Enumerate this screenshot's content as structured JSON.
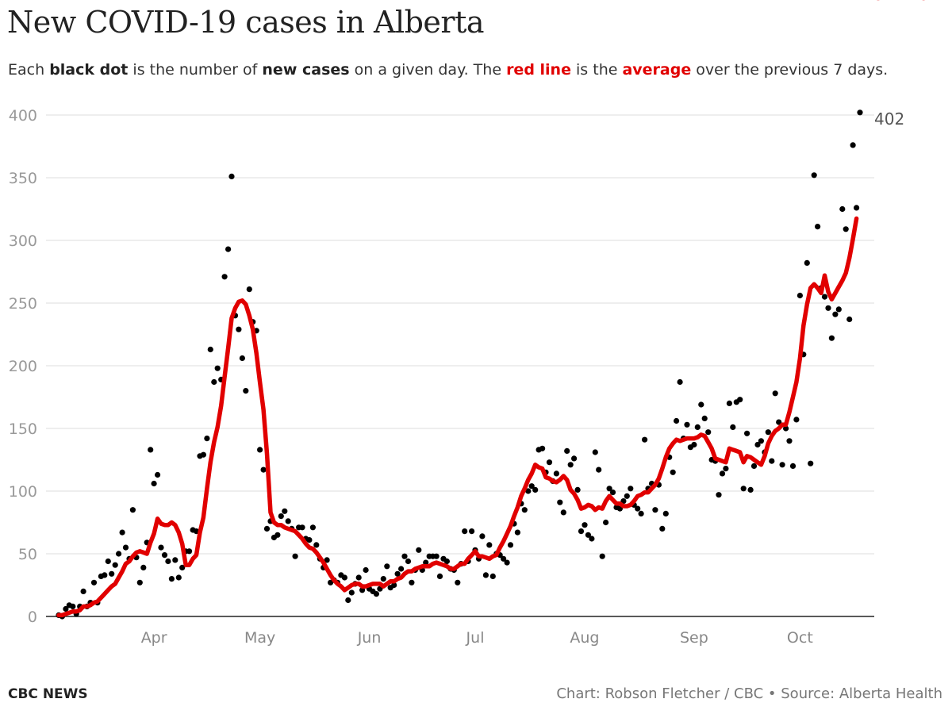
{
  "title": "New COVID-19 cases in Alberta",
  "subtitle": {
    "p1": "Each ",
    "b1": "black dot",
    "p2": " is the number of ",
    "b2": "new cases",
    "p3": " on a given day. The ",
    "r1": "red line",
    "p4": " is the ",
    "r2": "average",
    "p5": " over the previous 7 days."
  },
  "footer": {
    "brand": "CBC NEWS",
    "credit": "Chart: Robson Fletcher / CBC • Source: Alberta Health"
  },
  "colors": {
    "dot": "#000000",
    "line": "#e10000",
    "grid": "#dddddd",
    "tick": "#999999"
  },
  "chart_data": {
    "type": "scatter",
    "x_start": "Mar 5",
    "x_end": "Oct 22",
    "x_tick_labels": [
      "Apr",
      "May",
      "Jun",
      "Jul",
      "Aug",
      "Sep",
      "Oct"
    ],
    "x_tick_day_index": [
      27,
      57,
      88,
      118,
      149,
      180,
      210
    ],
    "y_ticks": [
      0,
      50,
      100,
      150,
      200,
      250,
      300,
      350,
      400
    ],
    "ylim": [
      0,
      400
    ],
    "grid": true,
    "end_labels": {
      "daily": "402",
      "average": "317.43"
    },
    "series": [
      {
        "kind": "daily",
        "values": [
          1,
          0,
          6,
          9,
          8,
          2,
          8,
          20,
          8,
          11,
          27,
          11,
          32,
          33,
          44,
          34,
          41,
          50,
          67,
          55,
          46,
          85,
          47,
          27,
          39,
          59,
          133,
          106,
          113,
          55,
          49,
          44,
          30,
          45,
          31,
          39,
          52,
          52,
          69,
          68,
          128,
          129,
          142,
          213,
          187,
          198,
          189,
          271,
          293,
          351,
          240,
          229,
          206,
          180,
          261,
          235,
          228,
          133,
          117,
          70,
          76,
          63,
          65,
          80,
          84,
          76,
          70,
          48,
          71,
          71,
          62,
          61,
          71,
          57,
          46,
          39,
          45,
          27,
          29,
          27,
          33,
          31,
          13,
          19,
          26,
          31,
          21,
          37,
          22,
          20,
          18,
          22,
          30,
          40,
          23,
          25,
          34,
          38,
          48,
          44,
          27,
          37,
          53,
          37,
          43,
          48,
          48,
          48,
          32,
          46,
          44,
          38,
          37,
          27,
          42,
          68,
          44,
          68,
          53,
          46,
          64,
          33,
          57,
          32,
          50,
          49,
          46,
          43,
          57,
          74,
          67,
          90,
          85,
          100,
          104,
          101,
          133,
          134,
          115,
          123,
          108,
          114,
          91,
          83,
          132,
          121,
          126,
          101,
          68,
          73,
          65,
          62,
          131,
          117,
          48,
          75,
          102,
          99,
          87,
          86,
          92,
          96,
          102,
          89,
          86,
          82,
          141,
          102,
          106,
          85,
          105,
          70,
          82,
          127,
          115,
          156,
          187,
          142,
          153,
          135,
          137,
          151,
          169,
          158,
          147,
          125,
          124,
          97,
          114,
          118,
          170,
          151,
          171,
          173,
          102,
          146,
          101,
          120,
          137,
          140,
          131,
          147,
          124,
          178,
          155,
          121,
          150,
          140,
          120,
          157,
          256,
          209,
          282,
          122,
          352,
          311,
          262,
          255,
          246,
          222,
          241,
          245,
          325,
          309,
          237,
          376,
          326,
          402
        ]
      },
      {
        "kind": "average",
        "values": [
          1,
          1,
          2,
          3,
          4,
          4,
          5,
          8,
          8,
          9,
          11,
          12,
          15,
          18,
          21,
          24,
          26,
          31,
          36,
          42,
          44,
          48,
          51,
          52,
          51,
          50,
          59,
          66,
          78,
          74,
          73,
          73,
          75,
          73,
          67,
          58,
          41,
          41,
          46,
          49,
          67,
          79,
          102,
          123,
          139,
          151,
          168,
          191,
          214,
          238,
          246,
          251,
          252,
          249,
          240,
          229,
          210,
          187,
          165,
          130,
          83,
          75,
          73,
          73,
          71,
          70,
          69,
          68,
          65,
          62,
          58,
          55,
          54,
          51,
          47,
          43,
          38,
          33,
          29,
          26,
          24,
          21,
          23,
          25,
          26,
          26,
          24,
          24,
          25,
          26,
          26,
          26,
          24,
          26,
          28,
          28,
          30,
          31,
          34,
          36,
          36,
          38,
          39,
          40,
          40,
          40,
          42,
          43,
          42,
          41,
          40,
          38,
          38,
          40,
          42,
          42,
          46,
          49,
          52,
          48,
          48,
          47,
          46,
          48,
          49,
          55,
          60,
          66,
          72,
          80,
          87,
          96,
          102,
          109,
          114,
          121,
          119,
          118,
          111,
          110,
          108,
          107,
          109,
          112,
          109,
          101,
          98,
          93,
          86,
          87,
          89,
          88,
          85,
          87,
          86,
          92,
          96,
          93,
          90,
          90,
          88,
          88,
          89,
          92,
          96,
          97,
          99,
          99,
          102,
          105,
          110,
          118,
          127,
          134,
          138,
          141,
          140,
          141,
          142,
          142,
          142,
          143,
          145,
          144,
          139,
          134,
          126,
          125,
          124,
          123,
          134,
          133,
          132,
          131,
          123,
          128,
          127,
          125,
          123,
          121,
          128,
          138,
          144,
          148,
          150,
          153,
          153,
          163,
          175,
          187,
          206,
          232,
          249,
          262,
          265,
          262,
          258,
          272,
          259,
          253,
          258,
          263,
          268,
          274,
          286,
          301,
          317.43
        ]
      }
    ]
  }
}
